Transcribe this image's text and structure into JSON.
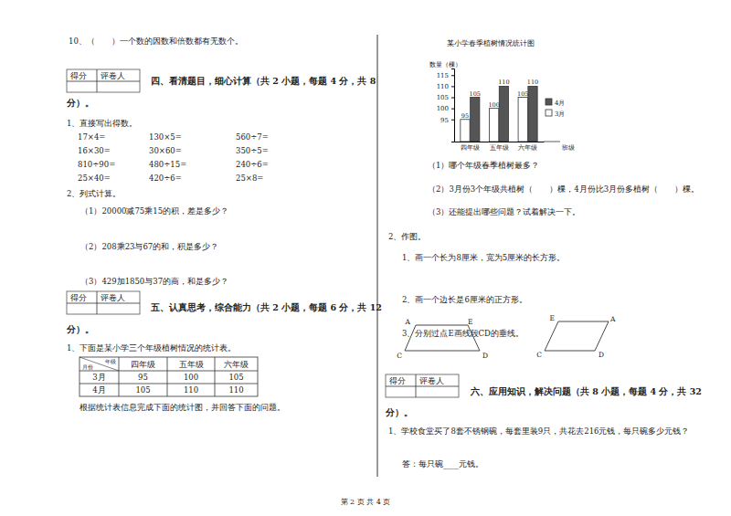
{
  "page": {
    "item10": "10、（　　）一个数的因数和倍数都有无数个。",
    "score_box": [
      "得分",
      "评卷人"
    ],
    "section4": {
      "heading": [
        "四、看清题目，细心计算（共 2 小题，每题 4 分，共 8",
        "分）。"
      ],
      "q1_title": "1、直接写出得数。",
      "q1_rows": [
        [
          "17×4=",
          "130×5=",
          "560÷7="
        ],
        [
          "16×30=",
          "30×60=",
          "350÷5="
        ],
        [
          "810÷90=",
          "480÷15=",
          "240÷6="
        ],
        [
          "25×40=",
          "420÷6=",
          "25×8="
        ]
      ],
      "q2_title": "2、列式计算。",
      "q2_items": [
        "（1）20000减75乘15的积，差是多少？",
        "（2）208乘23与67的和，积是多少？",
        "（3）429加1850与37的商，和是多少？"
      ]
    },
    "section5": {
      "heading": [
        "五、认真思考，综合能力（共 2 小题，每题 6 分，共 12",
        "分）。"
      ],
      "intro": "1、下面是某小学三个年级植树情况的统计表。",
      "table": {
        "corner_top": "年级",
        "corner_bottom": "月份",
        "header": [
          "四年级",
          "五年级",
          "六年级"
        ],
        "rows": [
          [
            "3月",
            "95",
            "100",
            "105"
          ],
          [
            "4月",
            "105",
            "110",
            "110"
          ]
        ]
      },
      "note": "根据统计表信息完成下面的统计图，并回答下面的问题。"
    },
    "chart_questions": [
      "（1）哪个年级春季植树最多？",
      "（2）3月份3个年级共植树（　　）棵，4月份比3月份多植树（　　）棵。",
      "（3）还能提出哪些问题？试着解决一下。"
    ],
    "drawing": {
      "title": "2、作图。",
      "items": [
        "1、画一个长为8厘米，宽为5厘米的长方形。",
        "2、画一个边长是6厘米的正方形。",
        "3、分别过点E画线段CD的垂线。"
      ],
      "figure1_labels": [
        "A",
        "E",
        "C",
        "D"
      ],
      "figure2_labels": [
        "E",
        "A",
        "C",
        "D"
      ]
    },
    "section6": {
      "heading": [
        "六、应用知识，解决问题（共 8 小题，每题 4 分，共 32",
        "分）。"
      ],
      "q1": "1、学校食堂买了8套不锈钢碗，每套里装9只，共花去216元钱，每只碗多少元钱？",
      "answer": "答：每只碗____元钱。"
    },
    "footer": "第 2 页 共 4 页"
  },
  "chart_data": {
    "type": "bar",
    "title": "某小学春季植树情况统计图",
    "y_label": "数量（棵）",
    "x_label": "班级",
    "categories": [
      "四年级",
      "五年级",
      "六年级"
    ],
    "series": [
      {
        "name": "4月",
        "color": "#555555",
        "values": [
          105,
          110,
          110
        ]
      },
      {
        "name": "3月",
        "color": "#ffffff",
        "values": [
          95,
          100,
          105
        ]
      }
    ],
    "ylim": [
      85,
      118
    ],
    "yticks": [
      95,
      100,
      105,
      110,
      115
    ],
    "data_labels": true,
    "legend": "upper right"
  }
}
